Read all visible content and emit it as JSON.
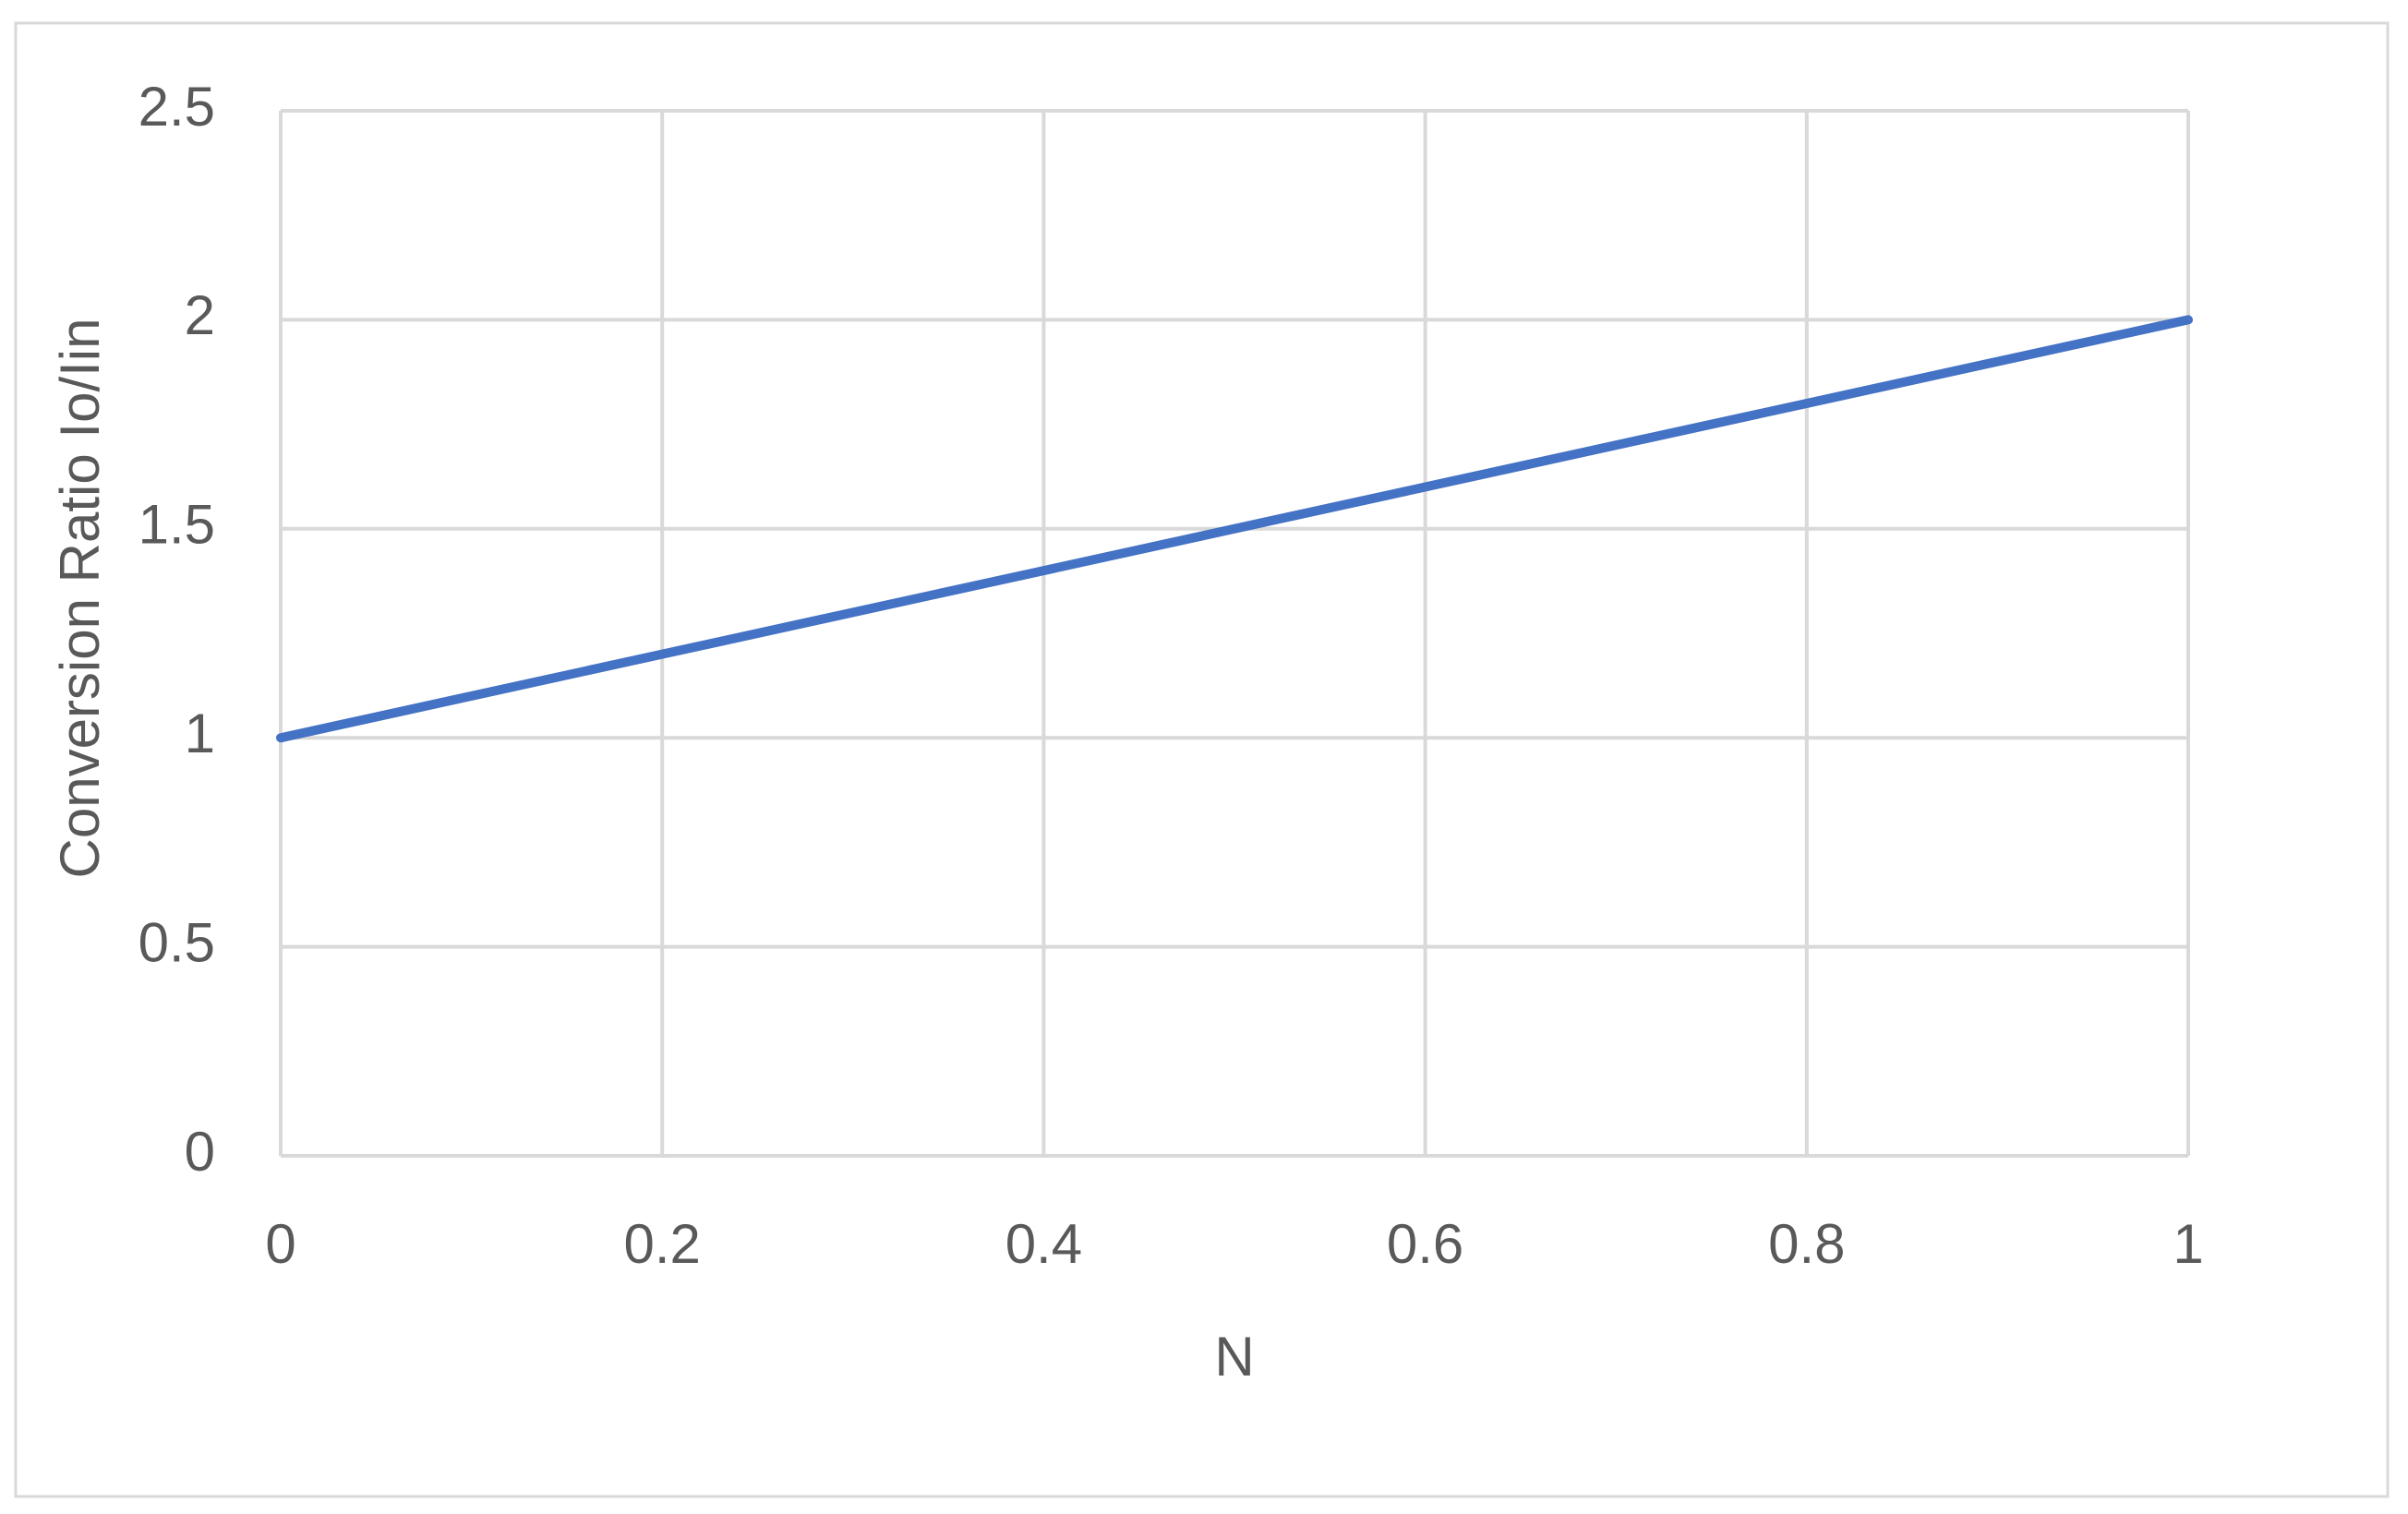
{
  "chart_data": {
    "type": "line",
    "x_label": "N",
    "y_label": "Conversion Ratio Io/Iin",
    "x": [
      0,
      0.2,
      0.4,
      0.6,
      0.8,
      1
    ],
    "values": [
      1,
      1.2,
      1.4,
      1.6,
      1.8,
      2
    ],
    "color": "#4472c4",
    "xlim": [
      0,
      1
    ],
    "xticks": [
      0,
      0.2,
      0.4,
      0.6,
      0.8,
      1
    ],
    "ylim": [
      0,
      2.5
    ],
    "yticks": [
      0,
      0.5,
      1,
      1.5,
      2,
      2.5
    ],
    "grid": true
  }
}
